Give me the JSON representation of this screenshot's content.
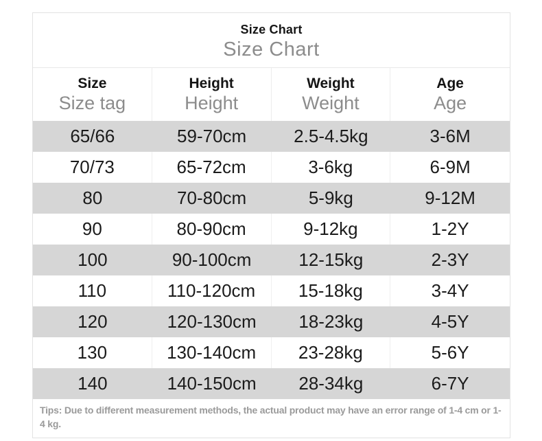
{
  "chart_data": {
    "type": "table",
    "title": "Size Chart",
    "subtitle": "Size Chart",
    "columns": [
      {
        "label": "Size",
        "sublabel": "Size tag"
      },
      {
        "label": "Height",
        "sublabel": "Height"
      },
      {
        "label": "Weight",
        "sublabel": "Weight"
      },
      {
        "label": "Age",
        "sublabel": "Age"
      }
    ],
    "rows": [
      [
        "65/66",
        "59-70cm",
        "2.5-4.5kg",
        "3-6M"
      ],
      [
        "70/73",
        "65-72cm",
        "3-6kg",
        "6-9M"
      ],
      [
        "80",
        "70-80cm",
        "5-9kg",
        "9-12M"
      ],
      [
        "90",
        "80-90cm",
        "9-12kg",
        "1-2Y"
      ],
      [
        "100",
        "90-100cm",
        "12-15kg",
        "2-3Y"
      ],
      [
        "110",
        "110-120cm",
        "15-18kg",
        "3-4Y"
      ],
      [
        "120",
        "120-130cm",
        "18-23kg",
        "4-5Y"
      ],
      [
        "130",
        "130-140cm",
        "23-28kg",
        "5-6Y"
      ],
      [
        "140",
        "140-150cm",
        "28-34kg",
        "6-7Y"
      ]
    ],
    "footnote": "Tips: Due to different measurement methods, the actual product may have an error range of 1-4 cm or 1-4 kg."
  },
  "colors": {
    "row_alt": "#d6d6d6",
    "border": "#e2e2e2",
    "text": "#1b1b1b",
    "muted_text": "#8c8c8c"
  }
}
